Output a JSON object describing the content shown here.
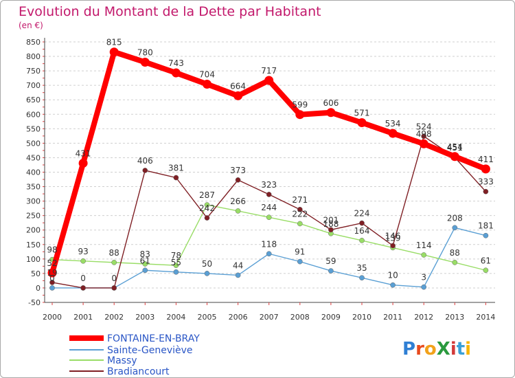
{
  "chart_data": {
    "type": "line",
    "title": "Evolution du Montant de la Dette par Habitant",
    "subtitle": "(en €)",
    "xlabel": "",
    "ylabel": "",
    "x": [
      "2000",
      "2001",
      "2002",
      "2003",
      "2004",
      "2005",
      "2006",
      "2007",
      "2008",
      "2009",
      "2010",
      "2011",
      "2012",
      "2013",
      "2014"
    ],
    "ylim": [
      -50,
      850
    ],
    "yticks": [
      "-50",
      "0",
      "50",
      "100",
      "150",
      "200",
      "250",
      "300",
      "350",
      "400",
      "450",
      "500",
      "550",
      "600",
      "650",
      "700",
      "750",
      "800",
      "850"
    ],
    "grid": "horizontal dashed",
    "legend": "bottom-left",
    "series": [
      {
        "name": "FONTAINE-EN-BRAY",
        "color": "#ff0000",
        "values": [
          52,
          431,
          815,
          780,
          743,
          704,
          664,
          717,
          599,
          606,
          571,
          534,
          498,
          454,
          411
        ],
        "labels": [
          "52",
          "431",
          "815",
          "780",
          "743",
          "704",
          "664",
          "717",
          "599",
          "606",
          "571",
          "534",
          "498",
          "454",
          "411"
        ]
      },
      {
        "name": "Sainte-Geneviève",
        "color": "#5a9fd4",
        "values": [
          0,
          0,
          0,
          61,
          55,
          50,
          44,
          118,
          91,
          59,
          35,
          10,
          3,
          208,
          181
        ],
        "labels": [
          "0",
          "",
          "",
          "61",
          "55",
          "50",
          "44",
          "118",
          "91",
          "59",
          "35",
          "10",
          "3",
          "208",
          "181"
        ]
      },
      {
        "name": "Massy",
        "color": "#99dd66",
        "values": [
          98,
          93,
          88,
          83,
          78,
          287,
          266,
          244,
          222,
          188,
          164,
          139,
          114,
          88,
          61
        ],
        "labels": [
          "98",
          "93",
          "88",
          "83",
          "78",
          "287",
          "266",
          "244",
          "222",
          "188",
          "164",
          "139",
          "114",
          "88",
          "61"
        ]
      },
      {
        "name": "Bradiancourt",
        "color": "#7f1f24",
        "values": [
          19,
          0,
          0,
          406,
          381,
          242,
          373,
          323,
          271,
          201,
          224,
          146,
          524,
          451,
          333
        ],
        "labels": [
          "19",
          "0",
          "0",
          "406",
          "381",
          "242",
          "373",
          "323",
          "271",
          "201",
          "224",
          "146",
          "524",
          "451",
          "333"
        ]
      }
    ]
  },
  "logo": {
    "text": "ProXiti"
  }
}
